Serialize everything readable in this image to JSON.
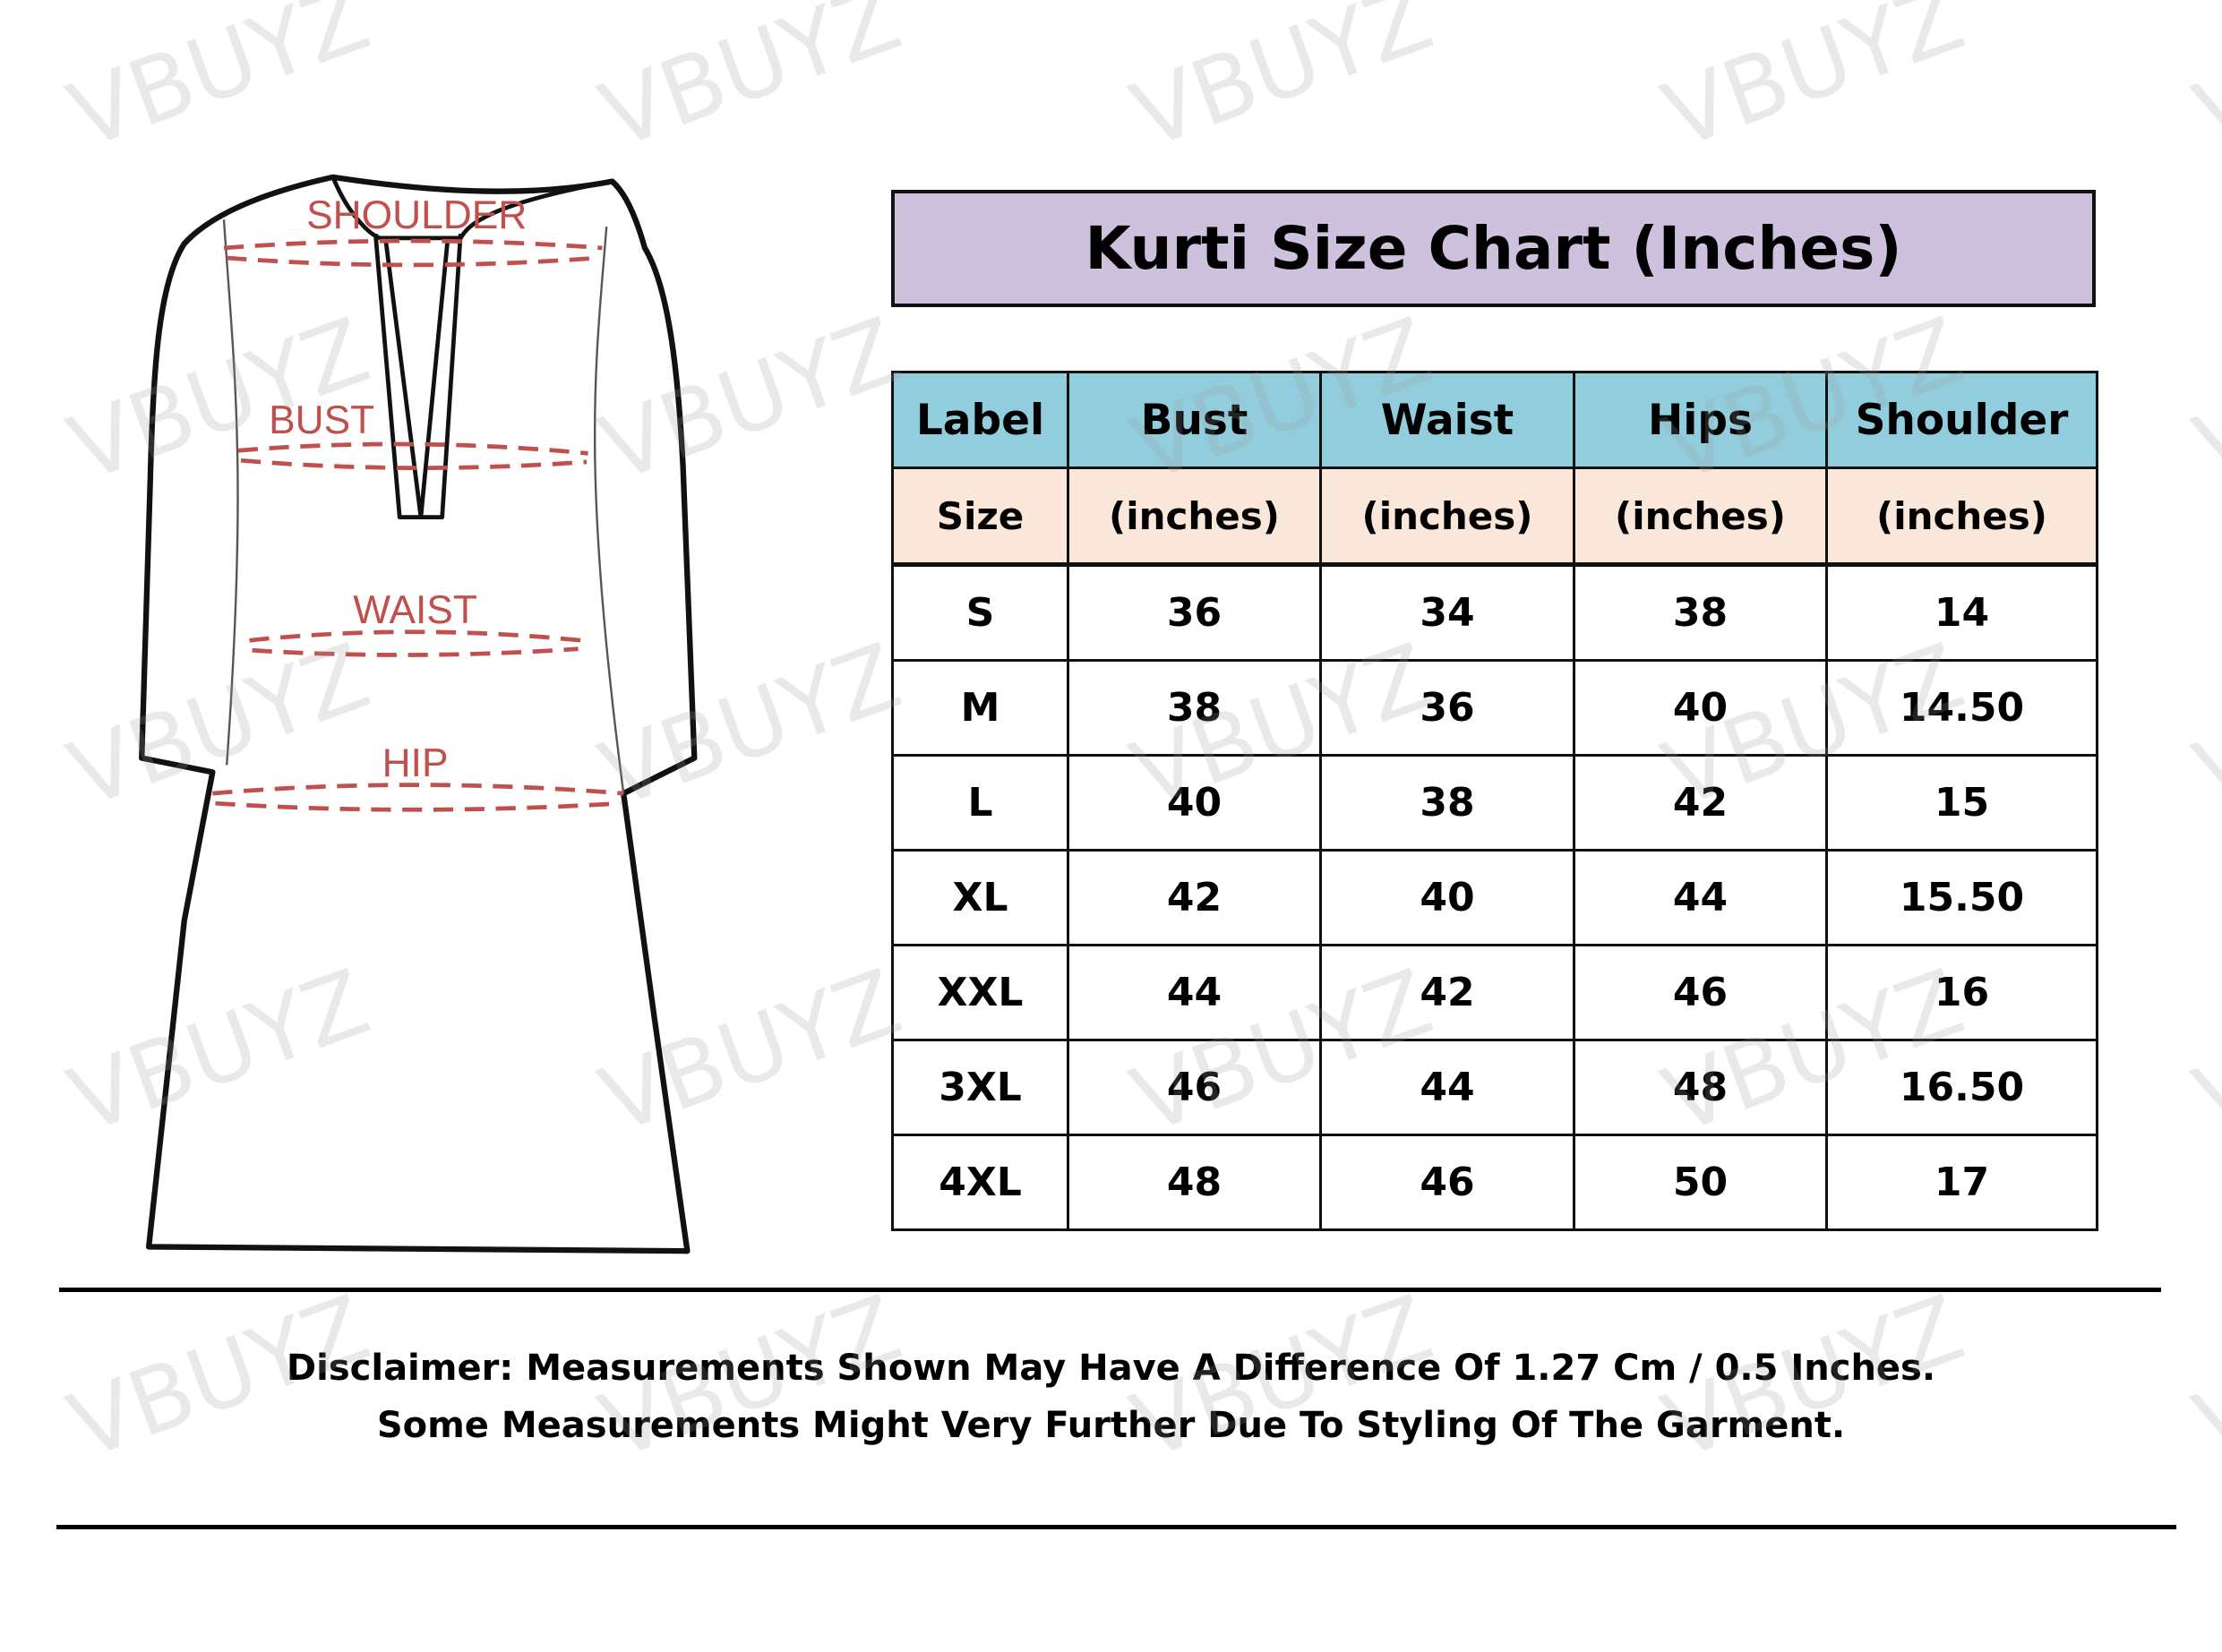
{
  "diagram": {
    "labels": {
      "shoulder": "SHOULDER",
      "bust": "BUST",
      "waist": "WAIST",
      "hip": "HIP"
    },
    "label_color": "#c0504d"
  },
  "title": "Kurti Size Chart (Inches)",
  "table": {
    "headers": [
      "Label",
      "Bust",
      "Waist",
      "Hips",
      "Shoulder"
    ],
    "units": [
      "Size",
      "(inches)",
      "(inches)",
      "(inches)",
      "(inches)"
    ],
    "rows": [
      [
        "S",
        "36",
        "34",
        "38",
        "14"
      ],
      [
        "M",
        "38",
        "36",
        "40",
        "14.50"
      ],
      [
        "L",
        "40",
        "38",
        "42",
        "15"
      ],
      [
        "XL",
        "42",
        "40",
        "44",
        "15.50"
      ],
      [
        "XXL",
        "44",
        "42",
        "46",
        "16"
      ],
      [
        "3XL",
        "46",
        "44",
        "48",
        "16.50"
      ],
      [
        "4XL",
        "48",
        "46",
        "50",
        "17"
      ]
    ]
  },
  "disclaimer": {
    "line1": "Disclaimer: Measurements Shown May Have A Difference Of 1.27 Cm / 0.5 Inches.",
    "line2": "Some Measurements Might Very Further Due To Styling Of The Garment."
  },
  "watermark": "VBUYZ",
  "colors": {
    "title_bg": "#cdc1dd",
    "header_bg": "#92cddd",
    "units_bg": "#fbe6da"
  }
}
